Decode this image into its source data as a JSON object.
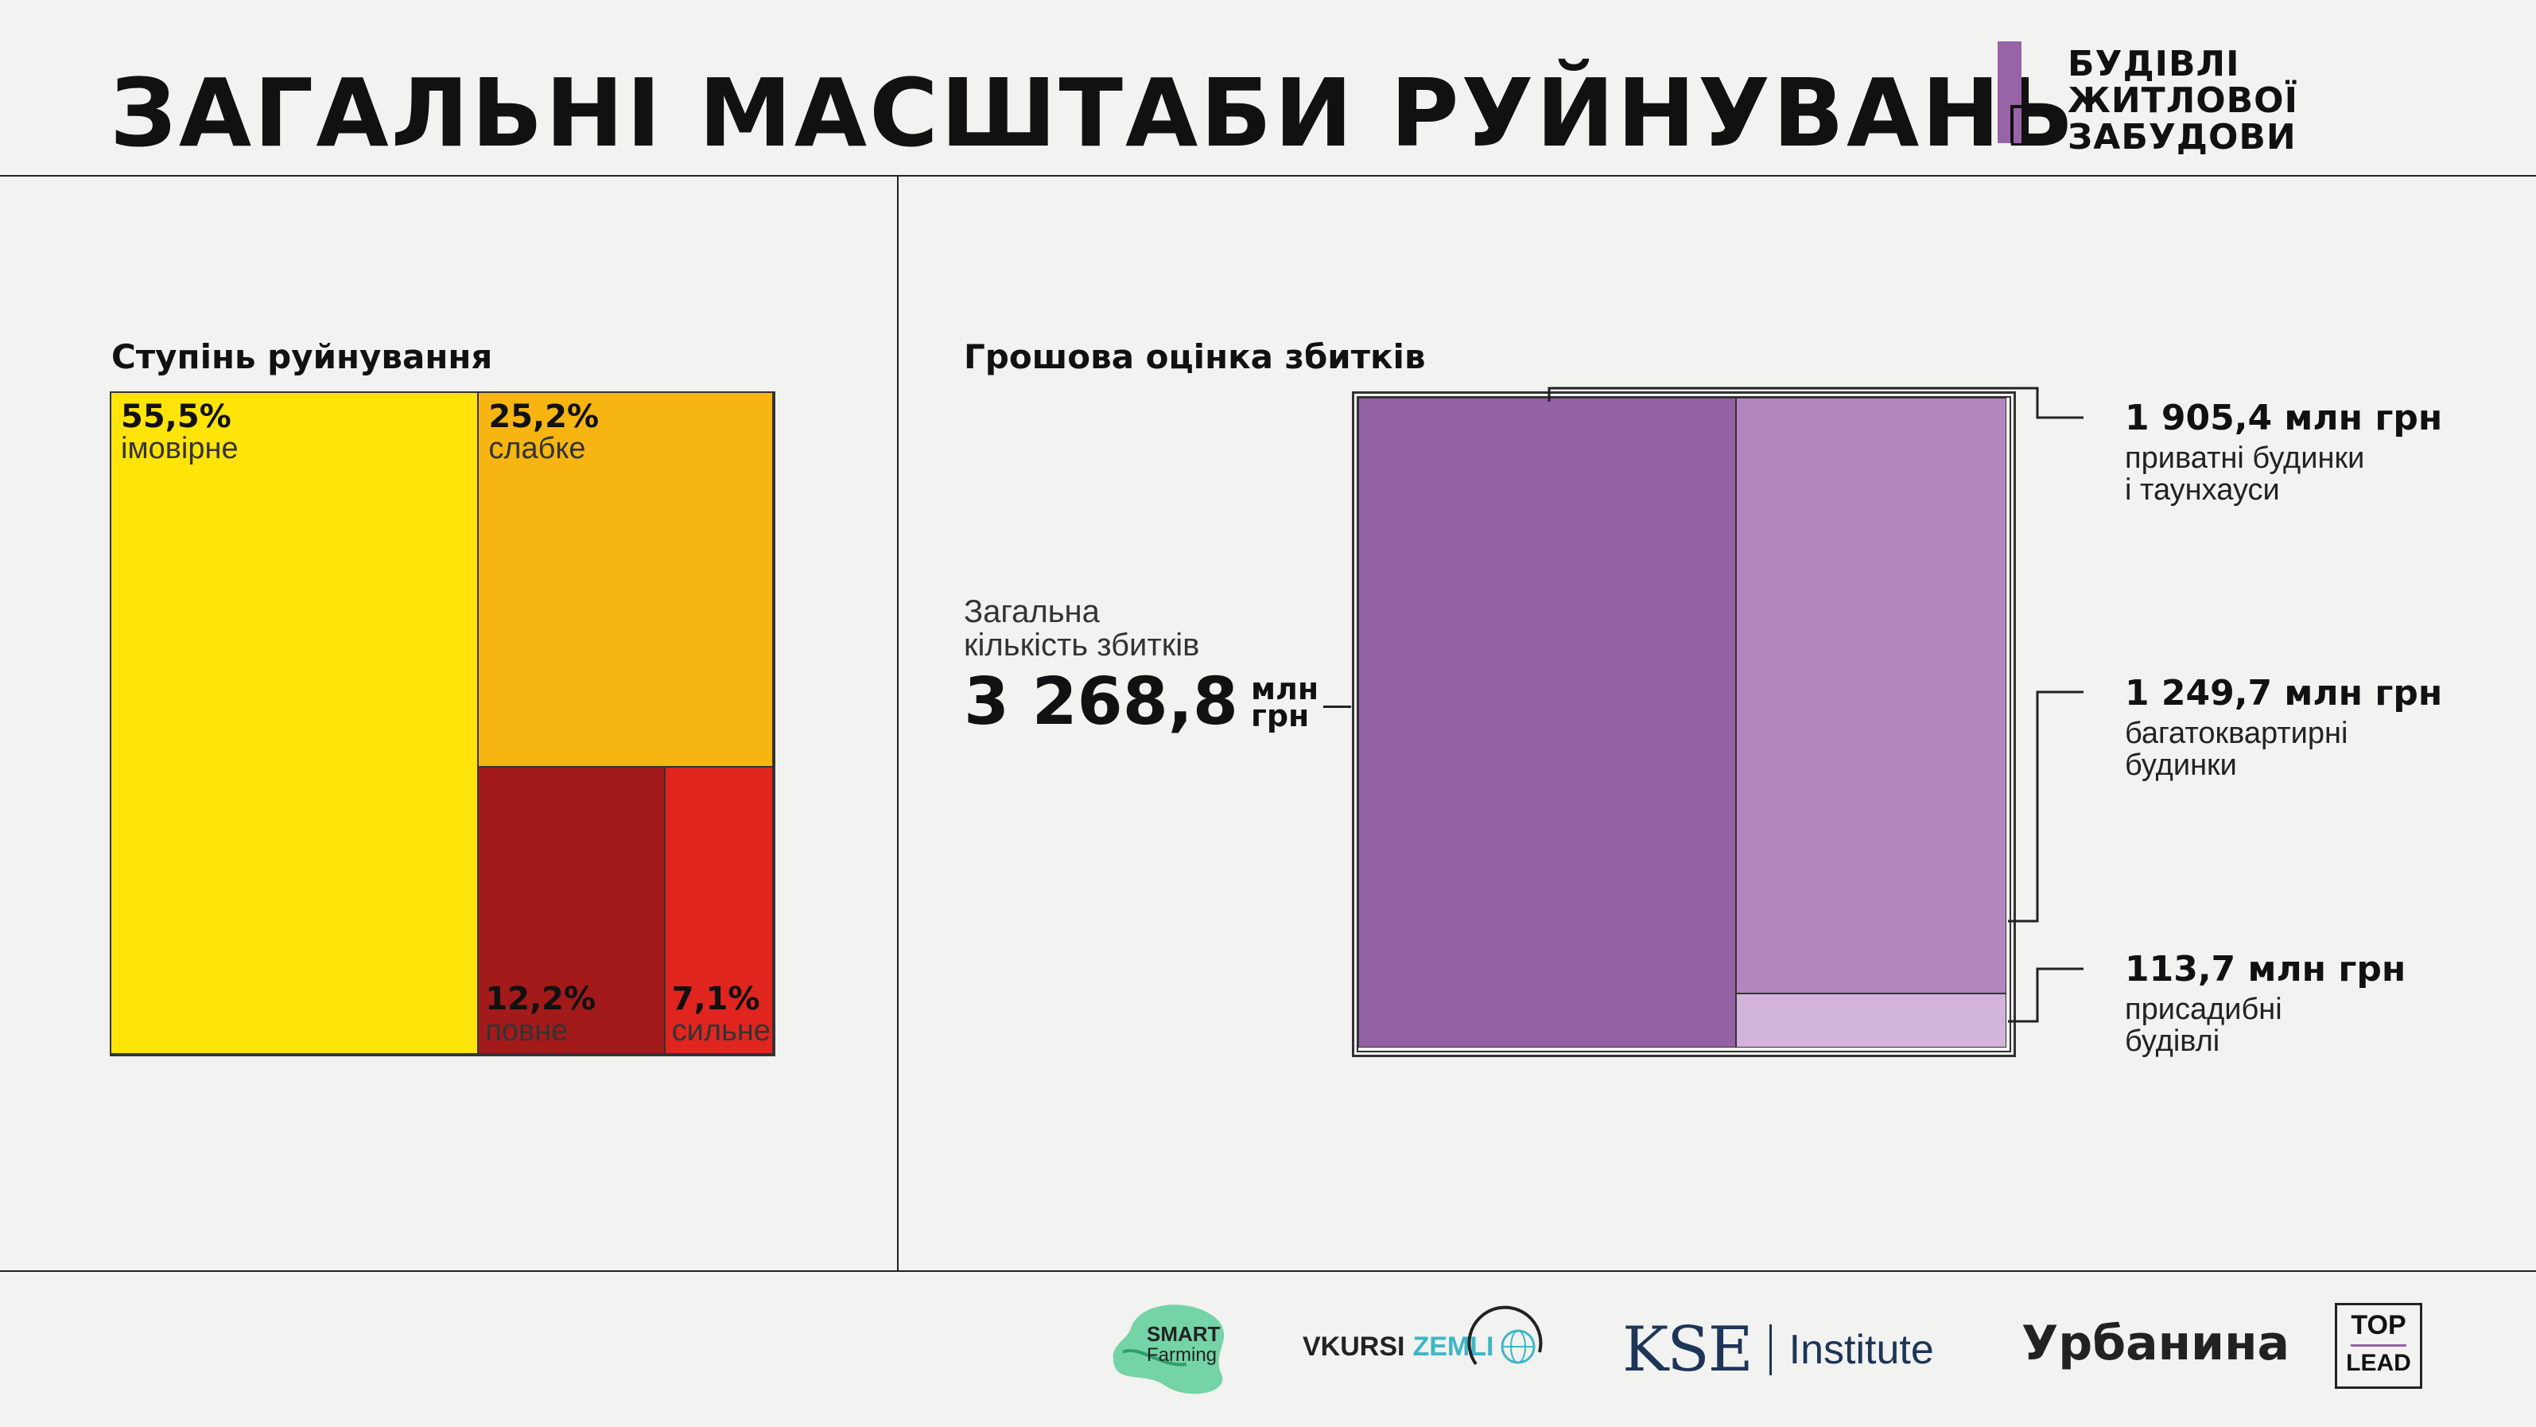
{
  "header": {
    "title": "ЗАГАЛЬНІ МАСШТАБИ РУЙНУВАНЬ",
    "logo_lines": [
      "БУДІВЛІ",
      "ЖИТЛОВОЇ",
      "ЗАБУДОВИ"
    ],
    "logo_accent": "#9863a7"
  },
  "left": {
    "section_title": "Ступінь руйнування"
  },
  "right": {
    "section_title": "Грошова оцінка збитків",
    "total_label_1": "Загальна",
    "total_label_2": "кількість збитків",
    "total_value": "3 268,8",
    "total_unit_1": "млн",
    "total_unit_2": "грн"
  },
  "chart_data": [
    {
      "type": "treemap",
      "title": "Ступінь руйнування",
      "unit": "%",
      "items": [
        {
          "label": "імовірне",
          "value": 55.5,
          "display": "55,5%",
          "color": "#ffe40a"
        },
        {
          "label": "слабке",
          "value": 25.2,
          "display": "25,2%",
          "color": "#f7b512"
        },
        {
          "label": "повне",
          "value": 12.2,
          "display": "12,2%",
          "color": "#a31a1a"
        },
        {
          "label": "сильне",
          "value": 7.1,
          "display": "7,1%",
          "color": "#e0251f"
        }
      ]
    },
    {
      "type": "treemap",
      "title": "Грошова оцінка збитків",
      "unit": "млн грн",
      "total": 3268.8,
      "items": [
        {
          "label_1": "приватні будинки",
          "label_2": "і таунхауси",
          "value": 1905.4,
          "display": "1 905,4 млн грн",
          "color": "#9461a4"
        },
        {
          "label_1": "багатоквартирні",
          "label_2": "будинки",
          "value": 1249.7,
          "display": "1 249,7 млн грн",
          "color": "#b387bd"
        },
        {
          "label_1": "присадибні",
          "label_2": "будівлі",
          "value": 113.7,
          "display": "113,7 млн грн",
          "color": "#d2b4da"
        }
      ]
    }
  ],
  "partners": {
    "smart_1": "SMART",
    "smart_2": "Farming",
    "vkursi_1": "VKURSI",
    "vkursi_2": "ZEMLI",
    "kse_1": "KSE",
    "kse_2": "Institute",
    "urbanyna": "Урбанина",
    "toplead_1": "TOP",
    "toplead_2": "LEAD"
  }
}
